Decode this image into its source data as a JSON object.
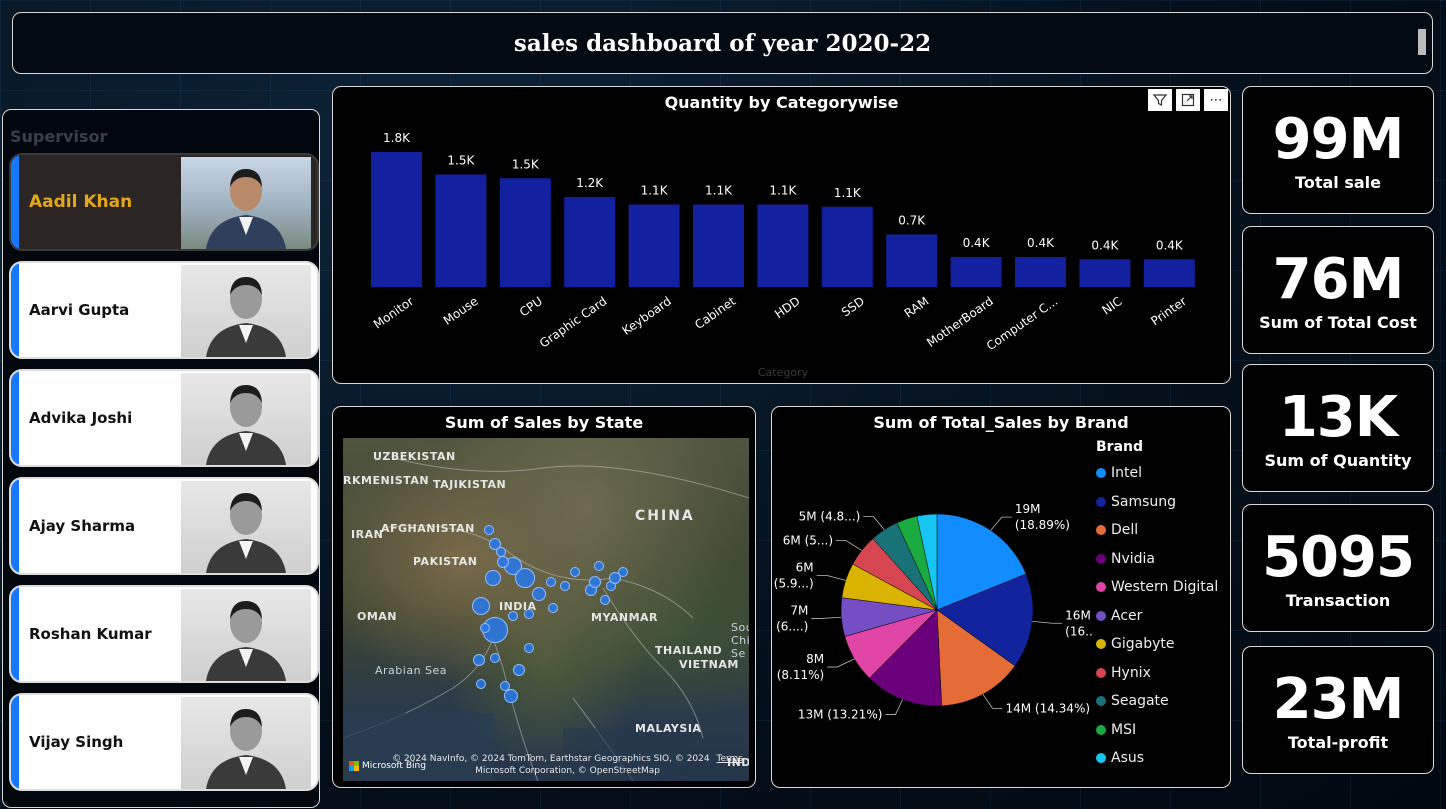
{
  "header": {
    "title": "sales  dashboard of year 2020-22"
  },
  "supervisor": {
    "label": "Supervisor",
    "items": [
      {
        "name": "Aadil Khan",
        "selected": true
      },
      {
        "name": "Aarvi Gupta",
        "selected": false
      },
      {
        "name": "Advika Joshi",
        "selected": false
      },
      {
        "name": "Ajay Sharma",
        "selected": false
      },
      {
        "name": "Roshan Kumar",
        "selected": false
      },
      {
        "name": "Vijay Singh",
        "selected": false
      }
    ]
  },
  "bar_chart": {
    "title": "Quantity by Categorywise",
    "icons": [
      "filter-icon",
      "focus-mode-icon",
      "more-options-icon"
    ]
  },
  "map_chart": {
    "title": "Sum of Sales by State",
    "labels": {
      "uzbekistan": "UZBEKISTAN",
      "turkmenistan": "RKMENISTAN",
      "tajikistan": "TAJIKISTAN",
      "afghanistan": "AFGHANISTAN",
      "iran": "IRAN",
      "pakistan": "PAKISTAN",
      "china": "CHINA",
      "india": "INDIA",
      "oman": "OMAN",
      "myanmar": "MYANMAR",
      "thailand": "THAILAND",
      "vietnam": "VIETNAM",
      "arabian_sea": "Arabian Sea",
      "malaysia": "MALAYSIA",
      "sou": "Sou",
      "chi": "Chi",
      "sea": "Se",
      "indo": "INDO"
    },
    "copyright_line1": "© 2024 NavInfo, © 2024 TomTom, Earthstar Geographics SIO, © 2024",
    "terms": "Terms",
    "copyright_line2": "Microsoft Corporation, © OpenStreetMap",
    "bing": "Microsoft Bing"
  },
  "pie_chart": {
    "title": "Sum of Total_Sales by Brand",
    "legend_title": "Brand"
  },
  "kpis": [
    {
      "value": "99M",
      "label": "Total sale"
    },
    {
      "value": "76M",
      "label": "Sum of Total  Cost"
    },
    {
      "value": "13K",
      "label": "Sum of Quantity"
    },
    {
      "value": "5095",
      "label": "Transaction"
    },
    {
      "value": "23M",
      "label": "Total-profit"
    }
  ],
  "chart_data": [
    {
      "type": "bar",
      "title": "Quantity by Categorywise",
      "xlabel": "Category",
      "ylabel": "",
      "color": "#1320a0",
      "categories": [
        "Monitor",
        "Mouse",
        "CPU",
        "Graphic Card",
        "Keyboard",
        "Cabinet",
        "HDD",
        "SSD",
        "RAM",
        "MotherBoard",
        "Computer C...",
        "NIC",
        "Printer"
      ],
      "values": [
        1800,
        1500,
        1450,
        1200,
        1100,
        1100,
        1100,
        1070,
        700,
        400,
        400,
        370,
        370
      ],
      "data_labels": [
        "1.8K",
        "1.5K",
        "1.5K",
        "1.2K",
        "1.1K",
        "1.1K",
        "1.1K",
        "1.1K",
        "0.7K",
        "0.4K",
        "0.4K",
        "0.4K",
        "0.4K"
      ],
      "ylim": [
        0,
        1800
      ],
      "grid": false
    },
    {
      "type": "pie",
      "title": "Sum of Total_Sales by Brand",
      "legend_position": "right",
      "slices": [
        {
          "name": "Intel",
          "percent": 18.89,
          "color": "#118dff",
          "label": "19M\n(18.89%)"
        },
        {
          "name": "Samsung",
          "percent": 16.0,
          "color": "#12239e",
          "label": "16M\n(16....)"
        },
        {
          "name": "Dell",
          "percent": 14.34,
          "color": "#e66c37",
          "label": "14M (14.34%)"
        },
        {
          "name": "Nvidia",
          "percent": 13.21,
          "color": "#6b007b",
          "label": "13M (13.21%)"
        },
        {
          "name": "Western Digital",
          "percent": 8.11,
          "color": "#e044a7",
          "label": "8M\n(8.11%)"
        },
        {
          "name": "Acer",
          "percent": 6.5,
          "color": "#744ec2",
          "label": "7M\n(6....)"
        },
        {
          "name": "Gigabyte",
          "percent": 5.9,
          "color": "#d9b300",
          "label": "6M\n(5.9...)"
        },
        {
          "name": "Hynix",
          "percent": 5.4,
          "color": "#d64550",
          "label": "6M (5...)"
        },
        {
          "name": "Seagate",
          "percent": 4.8,
          "color": "#197278",
          "label": "5M (4.8...)"
        },
        {
          "name": "MSI",
          "percent": 3.5,
          "color": "#1aab40",
          "label": ""
        },
        {
          "name": "Asus",
          "percent": 3.35,
          "color": "#15c6f4",
          "label": ""
        }
      ]
    }
  ]
}
